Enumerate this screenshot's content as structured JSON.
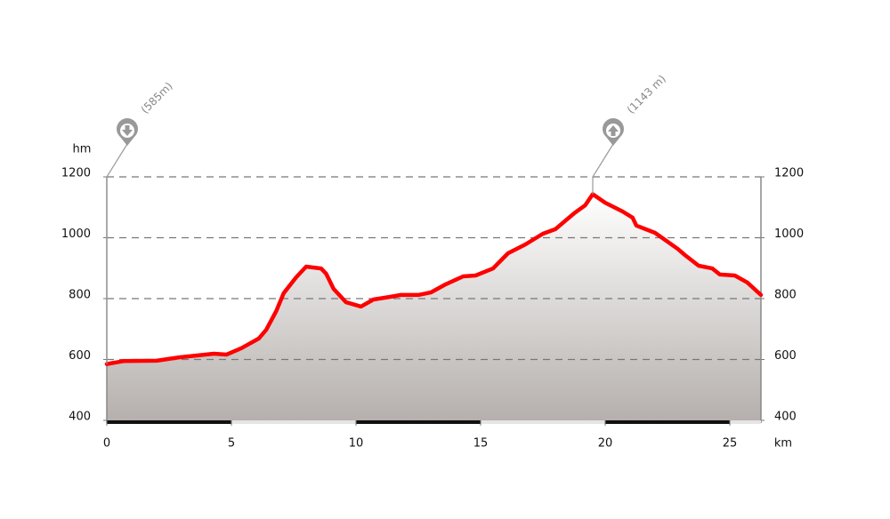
{
  "chart_data": {
    "type": "area",
    "y_axis_label": "hm",
    "x_axis_label": "km",
    "x": [
      0,
      0.7,
      2,
      2.9,
      4.3,
      4.8,
      5.4,
      6.1,
      6.4,
      6.8,
      7.1,
      7.6,
      8.0,
      8.6,
      8.8,
      9.1,
      9.6,
      10.2,
      10.7,
      11.4,
      11.8,
      12.5,
      13.0,
      13.6,
      14.3,
      14.8,
      15.5,
      16.1,
      16.8,
      17.5,
      18.0,
      18.75,
      19.2,
      19.5,
      20.0,
      20.7,
      21.1,
      21.25,
      22.0,
      22.9,
      23.2,
      23.75,
      24.3,
      24.6,
      25.2,
      25.7,
      26.25
    ],
    "y": [
      585,
      595,
      596,
      607,
      619,
      616,
      637,
      669,
      698,
      759,
      818,
      870,
      905,
      899,
      882,
      832,
      788,
      774,
      797,
      806,
      812,
      812,
      820,
      847,
      873,
      876,
      899,
      949,
      978,
      1013,
      1028,
      1080,
      1107,
      1143,
      1115,
      1086,
      1066,
      1040,
      1016,
      964,
      943,
      908,
      899,
      879,
      876,
      853,
      812
    ],
    "color": "#ff0000",
    "xlim": [
      0,
      26.25
    ],
    "xticks": [
      0,
      5,
      10,
      15,
      20,
      25
    ],
    "ylim": [
      400,
      1200
    ],
    "yticks": [
      400,
      600,
      800,
      1000,
      1200
    ],
    "grid": true,
    "annotations": [
      {
        "label": "(585m)",
        "x": 0,
        "y": 585,
        "icon": "down"
      },
      {
        "label": "(1143 m)",
        "x": 19.5,
        "y": 1143,
        "icon": "up"
      }
    ]
  }
}
